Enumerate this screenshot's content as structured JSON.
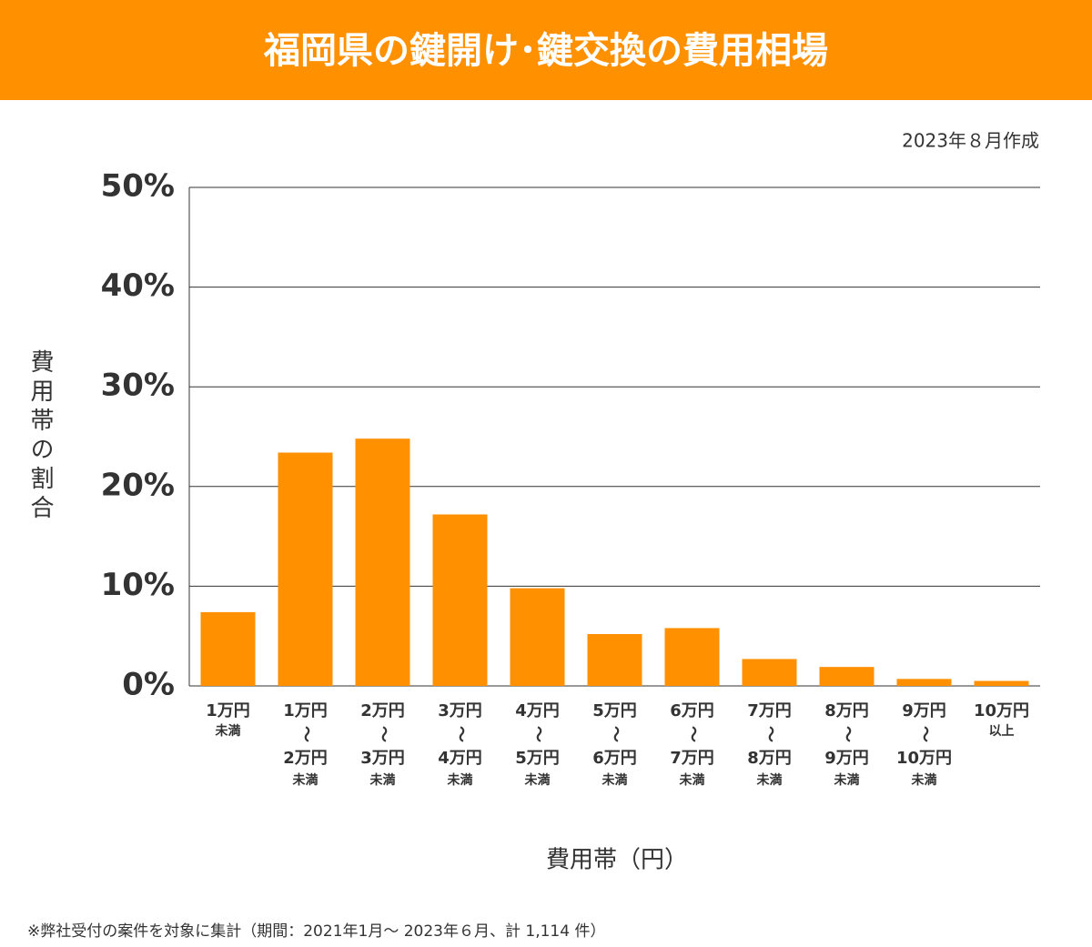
{
  "chart_data": {
    "type": "bar",
    "title": "福岡県の鍵開け･鍵交換の費用相場",
    "subtitle": "2023年８月作成",
    "y_label": "費用帯の割合",
    "x_label": "費用帯（円）",
    "footnote": "※弊社受付の案件を対象に集計（期間：2021年1月～ 2023年６月、計 1,114 件）",
    "categories": [
      [
        "1万円",
        "未満"
      ],
      [
        "1万円",
        "〜",
        "2万円",
        "未満"
      ],
      [
        "2万円",
        "〜",
        "3万円",
        "未満"
      ],
      [
        "3万円",
        "〜",
        "4万円",
        "未満"
      ],
      [
        "4万円",
        "〜",
        "5万円",
        "未満"
      ],
      [
        "5万円",
        "〜",
        "6万円",
        "未満"
      ],
      [
        "6万円",
        "〜",
        "7万円",
        "未満"
      ],
      [
        "7万円",
        "〜",
        "8万円",
        "未満"
      ],
      [
        "8万円",
        "〜",
        "9万円",
        "未満"
      ],
      [
        "9万円",
        "〜",
        "10万円",
        "未満"
      ],
      [
        "10万円",
        "以上"
      ]
    ],
    "values": [
      7.4,
      23.4,
      24.8,
      17.2,
      9.8,
      5.2,
      5.8,
      2.7,
      1.9,
      0.7,
      0.5
    ],
    "color": "#ff9000",
    "ylim": [
      0,
      50
    ],
    "yticks": [
      {
        "value": 0,
        "label": "0%"
      },
      {
        "value": 10,
        "label": "10%"
      },
      {
        "value": 20,
        "label": "20%"
      },
      {
        "value": 30,
        "label": "30%"
      },
      {
        "value": 40,
        "label": "40%"
      },
      {
        "value": 50,
        "label": "50%"
      }
    ],
    "grid": true
  }
}
